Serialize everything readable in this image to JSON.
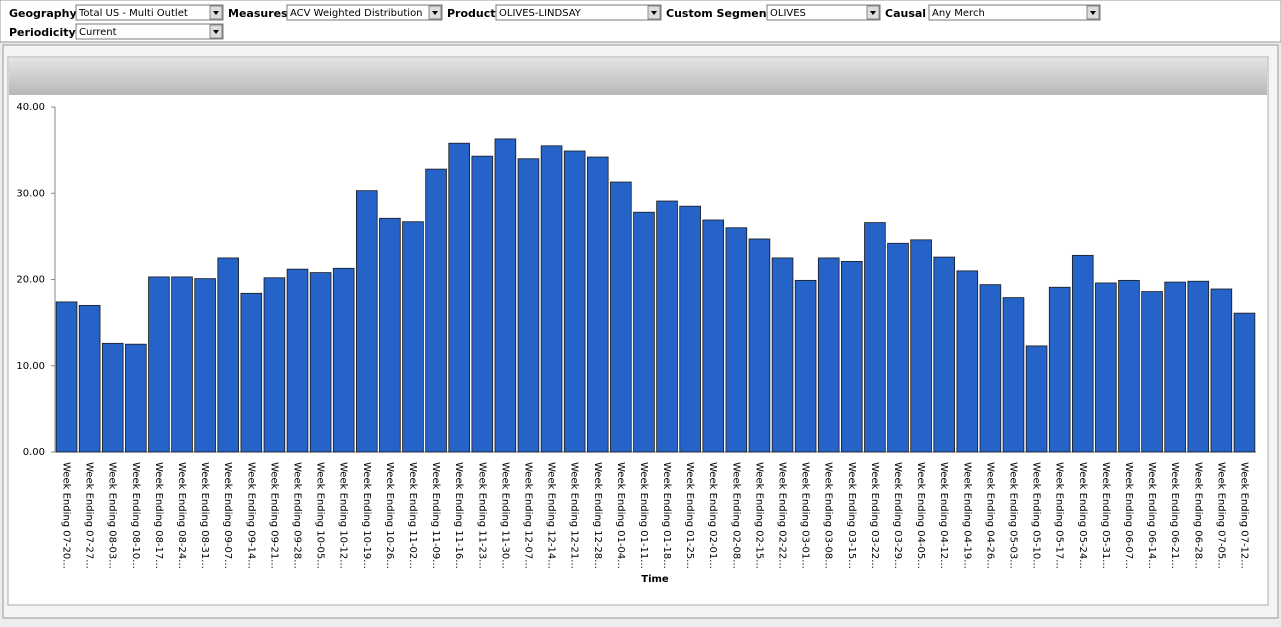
{
  "filters": [
    {
      "label": "Geography",
      "value": "Total US - Multi Outlet"
    },
    {
      "label": "Measures",
      "value": "ACV Weighted Distribution"
    },
    {
      "label": "Product",
      "value": "OLIVES-LINDSAY"
    },
    {
      "label": "Custom Segment",
      "value": "OLIVES"
    },
    {
      "label": "Causal",
      "value": "Any Merch"
    },
    {
      "label": "Periodicity",
      "value": "Current"
    }
  ],
  "chart_data": {
    "type": "bar",
    "x_label": "Time",
    "color": "#2563c9",
    "categories": [
      "Week Ending 07-20...",
      "Week Ending 07-27...",
      "Week Ending 08-03...",
      "Week Ending 08-10...",
      "Week Ending 08-17...",
      "Week Ending 08-24...",
      "Week Ending 08-31...",
      "Week Ending 09-07...",
      "Week Ending 09-14...",
      "Week Ending 09-21...",
      "Week Ending 09-28...",
      "Week Ending 10-05...",
      "Week Ending 10-12...",
      "Week Ending 10-19...",
      "Week Ending 10-26...",
      "Week Ending 11-02...",
      "Week Ending 11-09...",
      "Week Ending 11-16...",
      "Week Ending 11-23...",
      "Week Ending 11-30...",
      "Week Ending 12-07...",
      "Week Ending 12-14...",
      "Week Ending 12-21...",
      "Week Ending 12-28...",
      "Week Ending 01-04...",
      "Week Ending 01-11...",
      "Week Ending 01-18...",
      "Week Ending 01-25...",
      "Week Ending 02-01...",
      "Week Ending 02-08...",
      "Week Ending 02-15...",
      "Week Ending 02-22...",
      "Week Ending 03-01...",
      "Week Ending 03-08...",
      "Week Ending 03-15...",
      "Week Ending 03-22...",
      "Week Ending 03-29...",
      "Week Ending 04-05...",
      "Week Ending 04-12...",
      "Week Ending 04-19...",
      "Week Ending 04-26...",
      "Week Ending 05-03...",
      "Week Ending 05-10...",
      "Week Ending 05-17...",
      "Week Ending 05-24...",
      "Week Ending 05-31...",
      "Week Ending 06-07...",
      "Week Ending 06-14...",
      "Week Ending 06-21...",
      "Week Ending 06-28...",
      "Week Ending 07-05...",
      "Week Ending 07-12..."
    ],
    "values": [
      17.4,
      17.0,
      12.6,
      12.5,
      20.3,
      20.3,
      20.1,
      22.5,
      18.4,
      20.2,
      21.2,
      20.8,
      21.3,
      30.3,
      27.1,
      26.7,
      32.8,
      35.8,
      34.3,
      36.3,
      34.0,
      35.5,
      34.9,
      34.2,
      31.3,
      27.8,
      29.1,
      28.5,
      26.9,
      26.0,
      24.7,
      22.5,
      19.9,
      22.5,
      22.1,
      26.6,
      24.2,
      24.6,
      22.6,
      21.0,
      19.4,
      17.9,
      12.3,
      19.1,
      22.8,
      19.6,
      19.9,
      18.6,
      19.7,
      19.8,
      18.9,
      16.1
    ],
    "ylim": [
      0,
      40
    ],
    "yticks": [
      {
        "value": 0,
        "label": "0.00"
      },
      {
        "value": 10,
        "label": "10.00"
      },
      {
        "value": 20,
        "label": "20.00"
      },
      {
        "value": 30,
        "label": "30.00"
      },
      {
        "value": 40,
        "label": "40.00"
      }
    ]
  }
}
